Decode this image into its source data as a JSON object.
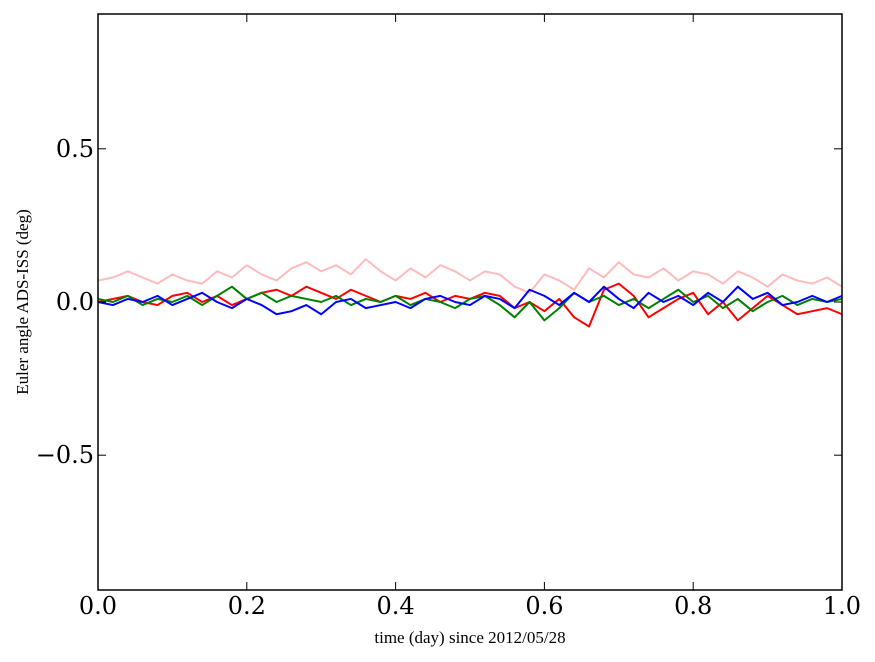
{
  "chart_data": {
    "type": "line",
    "title": "",
    "xlabel": "time (day) since 2012/05/28",
    "ylabel": "Euler angle ADS-ISS (deg)",
    "xlim": [
      0.0,
      1.0
    ],
    "ylim": [
      -0.94,
      0.94
    ],
    "grid": false,
    "x_ticks": [
      0.0,
      0.2,
      0.4,
      0.6,
      0.8,
      1.0
    ],
    "x_tick_labels": [
      "0.0",
      "0.2",
      "0.4",
      "0.6",
      "0.8",
      "1.0"
    ],
    "y_ticks": [
      0.5,
      0.0,
      -0.5
    ],
    "y_tick_labels": [
      "0.5",
      "0.0",
      "−0.5"
    ],
    "x": [
      0.0,
      0.02,
      0.04,
      0.06,
      0.08,
      0.1,
      0.12,
      0.14,
      0.16,
      0.18,
      0.2,
      0.22,
      0.24,
      0.26,
      0.28,
      0.3,
      0.32,
      0.34,
      0.36,
      0.38,
      0.4,
      0.42,
      0.44,
      0.46,
      0.48,
      0.5,
      0.52,
      0.54,
      0.56,
      0.58,
      0.6,
      0.62,
      0.64,
      0.66,
      0.68,
      0.7,
      0.72,
      0.74,
      0.76,
      0.78,
      0.8,
      0.82,
      0.84,
      0.86,
      0.88,
      0.9,
      0.92,
      0.94,
      0.96,
      0.98,
      1.0
    ],
    "series": [
      {
        "name": "pink",
        "color": "#ffbbbb",
        "values": [
          0.07,
          0.08,
          0.1,
          0.08,
          0.06,
          0.09,
          0.07,
          0.06,
          0.1,
          0.08,
          0.12,
          0.09,
          0.07,
          0.11,
          0.13,
          0.1,
          0.12,
          0.09,
          0.14,
          0.1,
          0.07,
          0.11,
          0.08,
          0.12,
          0.1,
          0.07,
          0.1,
          0.09,
          0.05,
          0.03,
          0.09,
          0.07,
          0.04,
          0.11,
          0.08,
          0.13,
          0.09,
          0.08,
          0.11,
          0.07,
          0.1,
          0.09,
          0.06,
          0.1,
          0.08,
          0.05,
          0.09,
          0.07,
          0.06,
          0.08,
          0.05
        ]
      },
      {
        "name": "red",
        "color": "#ff0000",
        "values": [
          0.0,
          0.01,
          0.02,
          0.0,
          -0.01,
          0.02,
          0.03,
          0.0,
          0.02,
          -0.01,
          0.01,
          0.03,
          0.04,
          0.02,
          0.05,
          0.03,
          0.01,
          0.04,
          0.02,
          0.0,
          0.02,
          0.01,
          0.03,
          0.0,
          0.02,
          0.01,
          0.03,
          0.02,
          -0.02,
          0.0,
          -0.03,
          0.01,
          -0.05,
          -0.08,
          0.04,
          0.06,
          0.02,
          -0.05,
          -0.02,
          0.01,
          0.03,
          -0.04,
          0.0,
          -0.06,
          -0.02,
          0.02,
          -0.01,
          -0.04,
          -0.03,
          -0.02,
          -0.04
        ]
      },
      {
        "name": "green",
        "color": "#008000",
        "values": [
          0.01,
          0.0,
          0.02,
          -0.01,
          0.01,
          0.0,
          0.02,
          -0.01,
          0.02,
          0.05,
          0.01,
          0.03,
          0.0,
          0.02,
          0.01,
          0.0,
          0.02,
          -0.01,
          0.01,
          0.0,
          0.02,
          -0.01,
          0.01,
          0.0,
          -0.02,
          0.01,
          0.02,
          -0.01,
          -0.05,
          0.0,
          -0.06,
          -0.02,
          0.03,
          0.0,
          0.02,
          -0.01,
          0.01,
          -0.02,
          0.01,
          0.04,
          0.0,
          0.02,
          -0.02,
          0.01,
          -0.03,
          0.0,
          0.02,
          -0.01,
          0.01,
          0.0,
          0.01
        ]
      },
      {
        "name": "blue",
        "color": "#0000ff",
        "values": [
          0.0,
          -0.01,
          0.01,
          0.0,
          0.02,
          -0.01,
          0.01,
          0.03,
          0.0,
          -0.02,
          0.01,
          -0.01,
          -0.04,
          -0.03,
          -0.01,
          -0.04,
          0.0,
          0.01,
          -0.02,
          -0.01,
          0.0,
          -0.02,
          0.01,
          0.02,
          0.0,
          -0.01,
          0.02,
          0.01,
          -0.02,
          0.04,
          0.02,
          -0.01,
          0.03,
          0.0,
          0.05,
          0.01,
          -0.02,
          0.03,
          0.0,
          0.02,
          -0.01,
          0.03,
          0.0,
          0.05,
          0.01,
          0.03,
          -0.01,
          0.0,
          0.02,
          0.0,
          0.02
        ]
      }
    ]
  }
}
